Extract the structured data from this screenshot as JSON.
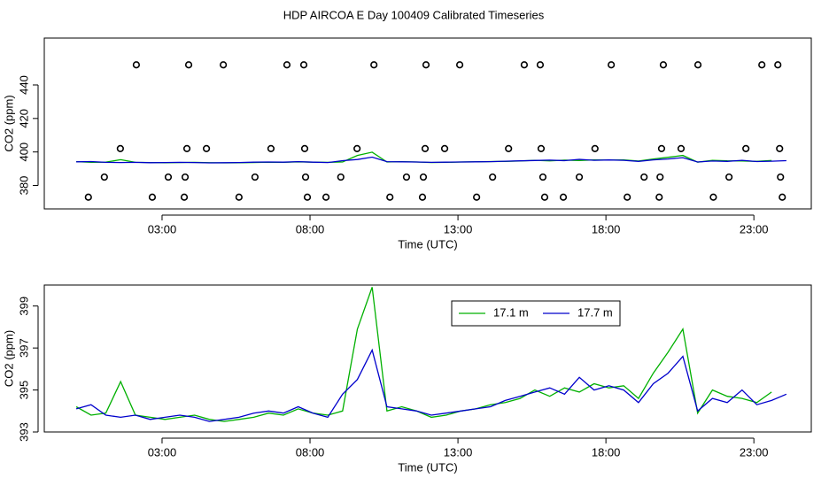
{
  "chart_data": [
    {
      "type": "line",
      "title": "HDP AIRCOA E  Day 100409  Calibrated Timeseries",
      "xlabel": "Time (UTC)",
      "ylabel": "CO2 (ppm)",
      "xlim": [
        -0.98,
        24.94
      ],
      "xticks": [
        {
          "value": 3,
          "label": "03:00"
        },
        {
          "value": 8,
          "label": "08:00"
        },
        {
          "value": 13,
          "label": "13:00"
        },
        {
          "value": 18,
          "label": "18:00"
        },
        {
          "value": 23,
          "label": "23:00"
        }
      ],
      "ylim": [
        366,
        468
      ],
      "yticks": [
        380,
        400,
        420,
        440
      ],
      "x": [
        0.1,
        0.6,
        1.1,
        1.6,
        2.1,
        2.6,
        3.1,
        3.6,
        4.1,
        4.6,
        5.1,
        5.6,
        6.1,
        6.6,
        7.1,
        7.6,
        8.1,
        8.6,
        9.1,
        9.6,
        10.1,
        10.6,
        11.1,
        11.6,
        12.1,
        12.6,
        13.1,
        13.6,
        14.1,
        14.6,
        15.1,
        15.6,
        16.1,
        16.6,
        17.1,
        17.6,
        18.1,
        18.6,
        19.1,
        19.6,
        20.1,
        20.6,
        21.1,
        21.6,
        22.1,
        22.6,
        23.1,
        23.6,
        24.1
      ],
      "series": [
        {
          "type": "scatter",
          "color": "#000000",
          "x": [
            2.13,
            3.9,
            5.07,
            7.22,
            7.79,
            10.16,
            11.92,
            13.06,
            15.24,
            15.78,
            18.18,
            19.94,
            21.11,
            23.27,
            23.81,
            1.59,
            3.84,
            4.5,
            6.68,
            7.82,
            9.59,
            11.89,
            12.55,
            14.71,
            15.81,
            17.63,
            19.88,
            20.54,
            22.73,
            23.87,
            1.05,
            3.21,
            3.78,
            6.14,
            7.85,
            9.04,
            11.26,
            11.83,
            14.17,
            15.87,
            17.1,
            19.29,
            19.83,
            22.16,
            23.9,
            0.51,
            2.67,
            3.75,
            5.6,
            7.91,
            8.54,
            10.7,
            11.8,
            13.63,
            15.93,
            16.56,
            18.72,
            19.8,
            21.63,
            23.96
          ],
          "values": [
            452,
            452,
            452,
            452,
            452,
            452,
            452,
            452,
            452,
            452,
            452,
            452,
            452,
            452,
            452,
            402,
            402,
            402,
            402,
            402,
            402,
            402,
            402,
            402,
            402,
            402,
            402,
            402,
            402,
            402,
            385,
            385,
            385,
            385,
            385,
            385,
            385,
            385,
            385,
            385,
            385,
            385,
            385,
            385,
            385,
            373,
            373,
            373,
            373,
            373,
            373,
            373,
            373,
            373,
            373,
            373,
            373,
            373,
            373,
            373
          ]
        },
        {
          "type": "line",
          "color": "#00b000",
          "values": [
            394.2,
            393.8,
            393.9,
            395.4,
            393.8,
            393.7,
            393.6,
            393.7,
            393.8,
            393.6,
            393.5,
            393.6,
            393.7,
            393.9,
            393.8,
            394.1,
            393.9,
            393.8,
            394.0,
            397.9,
            399.9,
            394.0,
            394.2,
            394.0,
            393.7,
            393.8,
            394.0,
            394.1,
            394.3,
            394.4,
            394.6,
            395.0,
            394.7,
            395.1,
            394.9,
            395.3,
            395.1,
            395.2,
            394.6,
            395.8,
            396.8,
            397.9,
            393.9,
            395.0,
            394.7,
            394.6,
            394.4,
            394.9,
            null
          ]
        },
        {
          "type": "line",
          "color": "#0000cc",
          "values": [
            394.1,
            394.3,
            393.8,
            393.7,
            393.8,
            393.6,
            393.7,
            393.8,
            393.7,
            393.5,
            393.6,
            393.7,
            393.9,
            394.0,
            393.9,
            394.2,
            393.9,
            393.7,
            394.8,
            395.5,
            396.9,
            394.2,
            394.1,
            394.0,
            393.8,
            393.9,
            394.0,
            394.1,
            394.2,
            394.5,
            394.7,
            394.9,
            395.1,
            394.8,
            395.6,
            395.0,
            395.2,
            395.0,
            394.4,
            395.3,
            395.8,
            396.6,
            394.0,
            394.6,
            394.4,
            395.0,
            394.3,
            394.5,
            394.8
          ]
        }
      ]
    },
    {
      "type": "line",
      "xlabel": "Time (UTC)",
      "ylabel": "CO2 (ppm)",
      "xlim": [
        -0.98,
        24.94
      ],
      "xticks": [
        {
          "value": 3,
          "label": "03:00"
        },
        {
          "value": 8,
          "label": "08:00"
        },
        {
          "value": 13,
          "label": "13:00"
        },
        {
          "value": 18,
          "label": "18:00"
        },
        {
          "value": 23,
          "label": "23:00"
        }
      ],
      "ylim": [
        393,
        400
      ],
      "yticks": [
        393,
        395,
        397,
        399
      ],
      "legend": "top",
      "x": [
        0.1,
        0.6,
        1.1,
        1.6,
        2.1,
        2.6,
        3.1,
        3.6,
        4.1,
        4.6,
        5.1,
        5.6,
        6.1,
        6.6,
        7.1,
        7.6,
        8.1,
        8.6,
        9.1,
        9.6,
        10.1,
        10.6,
        11.1,
        11.6,
        12.1,
        12.6,
        13.1,
        13.6,
        14.1,
        14.6,
        15.1,
        15.6,
        16.1,
        16.6,
        17.1,
        17.6,
        18.1,
        18.6,
        19.1,
        19.6,
        20.1,
        20.6,
        21.1,
        21.6,
        22.1,
        22.6,
        23.1,
        23.6,
        24.1
      ],
      "series": [
        {
          "name": "17.1 m",
          "type": "line",
          "color": "#00b000",
          "values": [
            394.2,
            393.8,
            393.9,
            395.4,
            393.8,
            393.7,
            393.6,
            393.7,
            393.8,
            393.6,
            393.5,
            393.6,
            393.7,
            393.9,
            393.8,
            394.1,
            393.9,
            393.8,
            394.0,
            397.9,
            399.9,
            394.0,
            394.2,
            394.0,
            393.7,
            393.8,
            394.0,
            394.1,
            394.3,
            394.4,
            394.6,
            395.0,
            394.7,
            395.1,
            394.9,
            395.3,
            395.1,
            395.2,
            394.6,
            395.8,
            396.8,
            397.9,
            393.9,
            395.0,
            394.7,
            394.6,
            394.4,
            394.9,
            null
          ]
        },
        {
          "name": "17.7 m",
          "type": "line",
          "color": "#0000cc",
          "values": [
            394.1,
            394.3,
            393.8,
            393.7,
            393.8,
            393.6,
            393.7,
            393.8,
            393.7,
            393.5,
            393.6,
            393.7,
            393.9,
            394.0,
            393.9,
            394.2,
            393.9,
            393.7,
            394.8,
            395.5,
            396.9,
            394.2,
            394.1,
            394.0,
            393.8,
            393.9,
            394.0,
            394.1,
            394.2,
            394.5,
            394.7,
            394.9,
            395.1,
            394.8,
            395.6,
            395.0,
            395.2,
            395.0,
            394.4,
            395.3,
            395.8,
            396.6,
            394.0,
            394.6,
            394.4,
            395.0,
            394.3,
            394.5,
            394.8
          ]
        }
      ]
    }
  ]
}
